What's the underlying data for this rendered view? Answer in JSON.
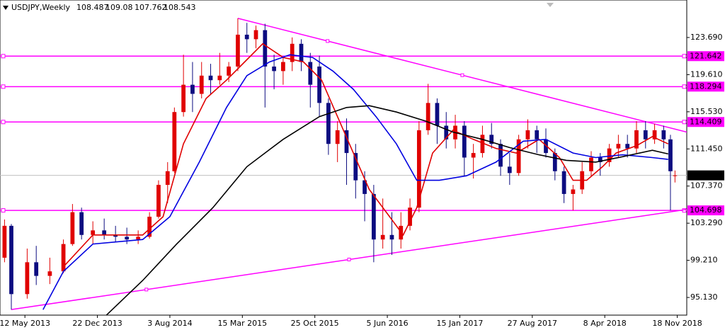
{
  "chart_data": {
    "type": "candlestick",
    "symbol": "USDJPY,Weekly",
    "header_ohlc": [
      108.487,
      109.08,
      107.762,
      108.543
    ],
    "xlim": [
      -11,
      292.2
    ],
    "ylim": [
      93.19,
      127.81
    ],
    "xticks": [
      {
        "value": 0,
        "label": "12 May 2013"
      },
      {
        "value": 32,
        "label": "22 Dec 2013"
      },
      {
        "value": 64,
        "label": "3 Aug 2014"
      },
      {
        "value": 96,
        "label": "15 Mar 2015"
      },
      {
        "value": 128,
        "label": "25 Oct 2015"
      },
      {
        "value": 160,
        "label": "5 Jun 2016"
      },
      {
        "value": 192,
        "label": "15 Jan 2017"
      },
      {
        "value": 224,
        "label": "27 Aug 2017"
      },
      {
        "value": 256,
        "label": "8 Apr 2018"
      },
      {
        "value": 288,
        "label": "18 Nov 2018"
      }
    ],
    "yticks": [
      {
        "value": 95.13,
        "label": "95.130"
      },
      {
        "value": 99.21,
        "label": "99.210"
      },
      {
        "value": 103.29,
        "label": "103.290"
      },
      {
        "value": 107.37,
        "label": "107.370"
      },
      {
        "value": 111.45,
        "label": "111.450"
      },
      {
        "value": 115.53,
        "label": "115.530"
      },
      {
        "value": 119.61,
        "label": "119.610"
      },
      {
        "value": 123.69,
        "label": "123.690"
      }
    ],
    "up_color": "#e00000",
    "down_color": "#0c0c80",
    "candles": {
      "x": [
        -9,
        -6,
        1,
        5,
        11,
        17,
        21,
        25,
        30,
        35,
        40,
        45,
        50,
        55,
        59,
        63,
        66,
        70,
        74,
        78,
        82,
        86,
        90,
        94,
        98,
        102,
        106,
        110,
        114,
        118,
        122,
        126,
        130,
        134,
        138,
        142,
        146,
        150,
        154,
        158,
        162,
        166,
        170,
        174,
        178,
        182,
        186,
        190,
        194,
        198,
        202,
        206,
        210,
        214,
        218,
        222,
        226,
        230,
        234,
        238,
        242,
        246,
        250,
        254,
        258,
        262,
        266,
        270,
        274,
        278,
        282,
        285,
        287
      ],
      "open": [
        99.5,
        103.0,
        95.5,
        99.0,
        97.5,
        98.0,
        101.0,
        104.5,
        102.0,
        102.5,
        102.0,
        101.8,
        101.5,
        101.8,
        104.0,
        107.5,
        109.0,
        115.5,
        118.5,
        117.5,
        119.5,
        119.0,
        119.5,
        120.5,
        124.0,
        123.5,
        124.5,
        120.5,
        120.0,
        121.0,
        123.0,
        121.0,
        120.5,
        116.5,
        112.0,
        113.5,
        111.0,
        108.0,
        106.5,
        101.5,
        102.0,
        101.5,
        103.0,
        105.0,
        113.5,
        116.5,
        114.0,
        112.5,
        114.0,
        110.5,
        111.0,
        113.0,
        112.0,
        109.5,
        108.8,
        112.5,
        113.5,
        112.5,
        111.0,
        109.0,
        106.5,
        107.0,
        109.0,
        110.5,
        110.0,
        111.5,
        112.0,
        111.5,
        113.5,
        112.5,
        113.5,
        112.5,
        108.487
      ],
      "high": [
        103.7,
        103.2,
        100.5,
        100.8,
        99.5,
        101.5,
        105.4,
        105.0,
        103.5,
        103.8,
        103.0,
        102.8,
        102.5,
        104.5,
        108.0,
        110.0,
        116.0,
        121.8,
        121.0,
        121.0,
        120.8,
        122.0,
        121.0,
        125.8,
        125.3,
        125.0,
        125.2,
        121.8,
        121.5,
        123.7,
        123.5,
        122.0,
        121.7,
        117.0,
        114.5,
        114.8,
        112.0,
        109.0,
        107.5,
        106.0,
        104.5,
        104.5,
        106.0,
        114.5,
        118.6,
        117.0,
        115.5,
        115.2,
        114.5,
        112.0,
        114.0,
        114.3,
        112.5,
        111.0,
        113.0,
        114.7,
        114.0,
        113.7,
        111.5,
        109.5,
        107.5,
        110.0,
        111.2,
        111.0,
        112.0,
        113.0,
        113.0,
        114.5,
        114.5,
        114.2,
        114.0,
        113.0,
        109.08
      ],
      "low": [
        99.0,
        93.8,
        95.0,
        96.5,
        96.6,
        97.8,
        100.8,
        101.5,
        101.0,
        101.5,
        101.2,
        101.0,
        101.0,
        101.6,
        103.8,
        105.5,
        108.8,
        115.0,
        115.5,
        117.0,
        117.5,
        118.5,
        118.8,
        120.0,
        122.0,
        122.5,
        116.0,
        118.0,
        118.5,
        120.0,
        120.0,
        116.0,
        115.0,
        110.8,
        110.0,
        107.5,
        106.0,
        103.5,
        99.0,
        100.5,
        99.8,
        100.5,
        102.5,
        104.5,
        113.0,
        112.0,
        111.5,
        111.5,
        108.5,
        108.2,
        110.5,
        111.5,
        108.5,
        107.5,
        108.5,
        111.5,
        111.0,
        110.5,
        108.0,
        105.5,
        104.7,
        106.5,
        108.5,
        108.5,
        109.5,
        110.5,
        110.5,
        111.0,
        111.5,
        112.0,
        111.5,
        104.7,
        107.762
      ],
      "close": [
        103.0,
        95.5,
        99.0,
        97.5,
        98.0,
        101.0,
        104.5,
        102.0,
        102.5,
        102.0,
        101.8,
        101.5,
        101.8,
        104.0,
        107.5,
        109.0,
        115.5,
        118.5,
        117.5,
        119.5,
        119.0,
        119.5,
        120.5,
        124.0,
        123.5,
        124.5,
        120.5,
        120.0,
        121.0,
        123.0,
        121.0,
        118.5,
        116.5,
        112.0,
        113.5,
        111.0,
        108.0,
        106.5,
        101.5,
        102.0,
        101.5,
        103.0,
        105.0,
        113.5,
        116.5,
        114.0,
        112.5,
        114.0,
        110.5,
        111.0,
        113.0,
        112.0,
        109.5,
        108.8,
        112.5,
        113.5,
        112.5,
        111.0,
        109.0,
        106.5,
        107.0,
        109.0,
        110.5,
        110.0,
        111.5,
        112.0,
        111.5,
        113.5,
        112.5,
        113.5,
        112.5,
        109.0,
        108.543
      ]
    },
    "moving_averages": [
      {
        "color": "#e00000",
        "x": [
          17,
          30,
          52,
          61,
          70,
          80,
          89,
          97,
          105,
          114,
          123,
          131,
          138,
          145,
          152,
          161,
          167,
          173,
          180,
          189,
          198,
          208,
          217,
          227,
          236,
          242,
          248,
          255,
          261,
          270,
          277,
          284
        ],
        "values": [
          98.5,
          102.0,
          102.0,
          104.0,
          112.0,
          117.0,
          119.0,
          121.0,
          123.0,
          121.5,
          121.0,
          119.0,
          115.0,
          111.0,
          107.0,
          104.0,
          102.0,
          105.0,
          111.0,
          113.5,
          112.5,
          111.5,
          111.0,
          112.5,
          110.5,
          108.0,
          108.0,
          109.5,
          111.0,
          111.8,
          112.8,
          112.0
        ]
      },
      {
        "color": "#0000e0",
        "x": [
          8,
          17,
          30,
          52,
          64,
          77,
          89,
          98,
          108,
          117,
          127,
          136,
          145,
          155,
          164,
          173,
          183,
          195,
          208,
          220,
          230,
          242,
          252,
          264,
          277,
          284
        ],
        "values": [
          93.8,
          98.0,
          101.0,
          101.5,
          104.0,
          110.0,
          116.0,
          119.5,
          121.0,
          121.8,
          121.5,
          120.0,
          118.0,
          115.0,
          112.0,
          108.0,
          108.0,
          108.5,
          110.0,
          112.3,
          112.5,
          111.0,
          110.5,
          110.8,
          110.5,
          110.3
        ]
      },
      {
        "color": "#000000",
        "x": [
          36,
          52,
          67,
          83,
          98,
          114,
          130,
          142,
          152,
          164,
          177,
          189,
          202,
          214,
          227,
          239,
          252,
          264,
          277,
          284
        ],
        "values": [
          93.2,
          97.0,
          101.0,
          105.0,
          109.5,
          112.5,
          115.0,
          116.0,
          116.2,
          115.5,
          114.5,
          113.3,
          112.5,
          111.6,
          110.8,
          110.2,
          110.0,
          110.6,
          111.3,
          110.9
        ]
      }
    ],
    "levels": [
      {
        "value": 121.642,
        "label": "121.642"
      },
      {
        "value": 118.294,
        "label": "118.294"
      },
      {
        "value": 114.409,
        "label": "114.409"
      },
      {
        "value": 104.698,
        "label": "104.698"
      }
    ],
    "level_color": "#ff00ff",
    "current_price": {
      "value": 108.543,
      "label": "108.543"
    },
    "trendlines": [
      {
        "x": [
          94,
          292.2
        ],
        "values": [
          125.8,
          113.3
        ]
      },
      {
        "x": [
          -6,
          292.2
        ],
        "values": [
          93.8,
          104.8
        ]
      }
    ]
  }
}
